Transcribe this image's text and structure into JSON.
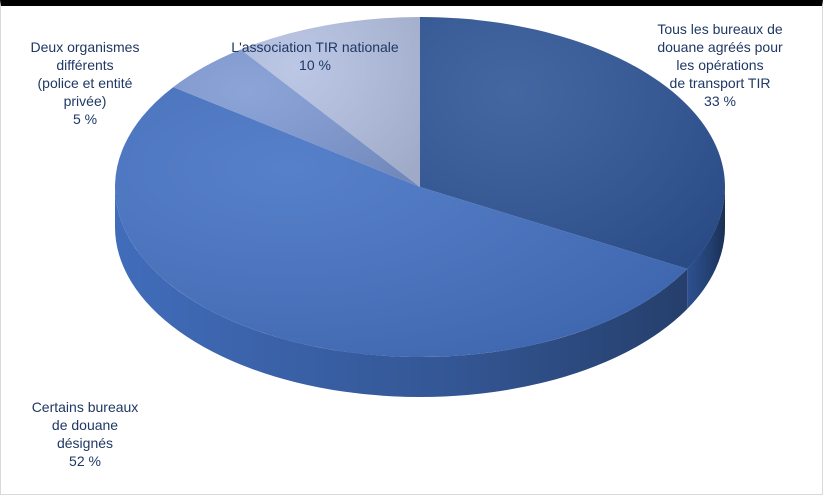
{
  "chart_data": {
    "type": "pie",
    "style": "3d",
    "title": "",
    "slices": [
      {
        "label_lines": [
          "Tous les bureaux de",
          "douane agréés pour",
          "les opérations",
          "de transport TIR"
        ],
        "value": 33,
        "value_label": "33 %",
        "color": "#2f5597"
      },
      {
        "label_lines": [
          "Certains bureaux",
          "de douane",
          "désignés"
        ],
        "value": 52,
        "value_label": "52 %",
        "color": "#4472c4"
      },
      {
        "label_lines": [
          "Deux organismes",
          "différents",
          "(police et entité",
          "privée)"
        ],
        "value": 5,
        "value_label": "5 %",
        "color": "#7f9ad3"
      },
      {
        "label_lines": [
          "L'association TIR nationale"
        ],
        "value": 10,
        "value_label": "10 %",
        "color": "#b4c1e2"
      }
    ]
  }
}
